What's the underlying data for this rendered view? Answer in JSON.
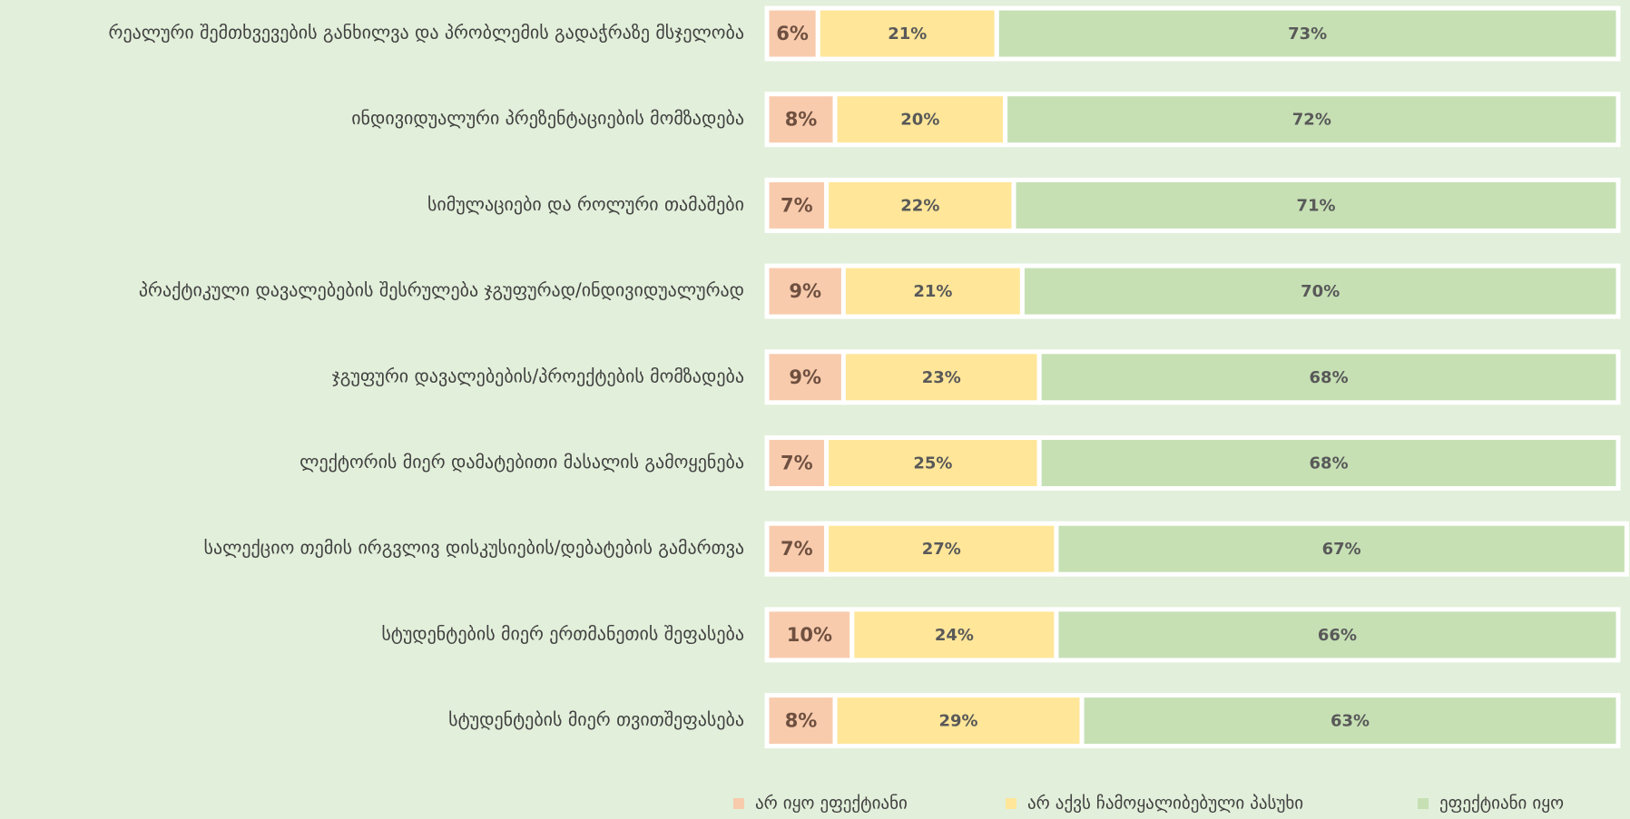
{
  "chart_data": {
    "type": "stacked-barh",
    "categories": [
      "რეალური შემთხვევების განხილვა და პრობლემის გადაჭრაზე მსჯელობა",
      "ინდივიდუალური პრეზენტაციების მომზადება",
      "სიმულაციები და როლური თამაშები",
      "პრაქტიკული დავალებების შესრულება ჯგუფურად/ინდივიდუალურად",
      "ჯგუფური დავალებების/პროექტების მომზადება",
      "ლექტორის მიერ დამატებითი მასალის გამოყენება",
      "სალექციო თემის ირგვლივ დისკუსიების/დებატების გამართვა",
      "სტუდენტების მიერ ერთმანეთის შეფასება",
      "სტუდენტების მიერ თვითშეფასება"
    ],
    "series": [
      {
        "name": "არ იყო ეფექტიანი",
        "color": "#f8cbad",
        "values": [
          6,
          8,
          7,
          9,
          9,
          7,
          7,
          10,
          8
        ],
        "value_labels": [
          "6%",
          "8%",
          "7%",
          "9%",
          "9%",
          "7%",
          "7%",
          "10%",
          "8%"
        ]
      },
      {
        "name": "არ აქვს ჩამოყალიბებული პასუხი",
        "color": "#ffe699",
        "values": [
          21,
          20,
          22,
          21,
          23,
          25,
          27,
          24,
          29
        ],
        "value_labels": [
          "21%",
          "20%",
          "22%",
          "21%",
          "23%",
          "25%",
          "27%",
          "24%",
          "29%"
        ]
      },
      {
        "name": "ეფექტიანი იყო",
        "color": "#c6e0b4",
        "values": [
          73,
          72,
          71,
          70,
          68,
          68,
          67,
          66,
          63
        ],
        "value_labels": [
          "73%",
          "72%",
          "71%",
          "70%",
          "68%",
          "68%",
          "67%",
          "66%",
          "63%"
        ]
      }
    ],
    "xlim": [
      0,
      100
    ],
    "legend": "bottom"
  }
}
